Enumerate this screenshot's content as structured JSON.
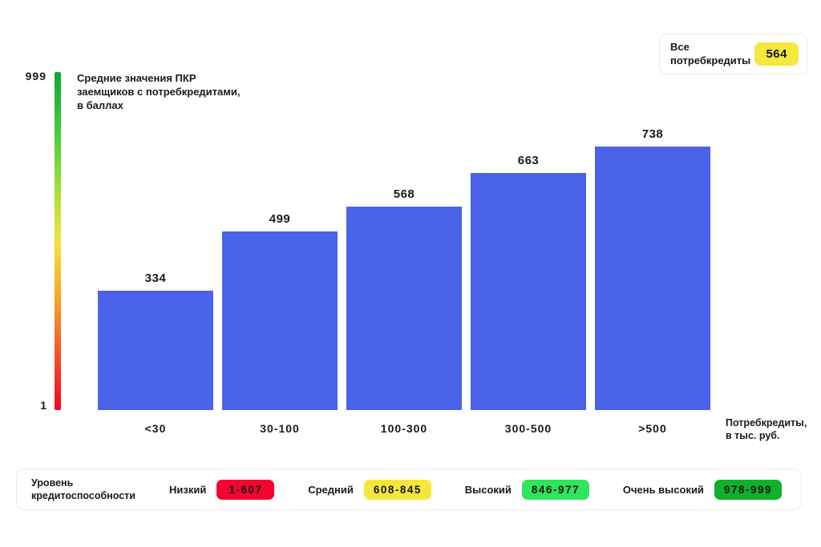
{
  "header": {
    "label": "Все потребкредиты",
    "value": "564",
    "badge_color": "#F7E73A"
  },
  "chart_data": {
    "type": "bar",
    "title": "Средние значения ПКР\nзаемщиков с потребкредитами,\nв баллах",
    "categories": [
      "<30",
      "30-100",
      "100-300",
      "300-500",
      ">500"
    ],
    "values": [
      334,
      499,
      568,
      663,
      738
    ],
    "xlabel": "Потребкредиты,\nв тыс. руб.",
    "ylim": [
      1,
      999
    ],
    "y_axis_labels": {
      "max": "999",
      "min": "1"
    },
    "bar_color": "#4A63E8",
    "grid": false,
    "legend_position": "bottom",
    "gradient_scale": [
      "#12A532",
      "#3FCB40",
      "#9FDC3A",
      "#F2E438",
      "#F5A629",
      "#F2542A",
      "#F00524"
    ]
  },
  "legend": {
    "title": "Уровень\nкредитоспособности",
    "items": [
      {
        "label": "Низкий",
        "range": "1-607",
        "color": "#F20530"
      },
      {
        "label": "Средний",
        "range": "608-845",
        "color": "#F7E73A"
      },
      {
        "label": "Высокий",
        "range": "846-977",
        "color": "#2EE55C"
      },
      {
        "label": "Очень высокий",
        "range": "978-999",
        "color": "#0FB02B"
      }
    ]
  }
}
